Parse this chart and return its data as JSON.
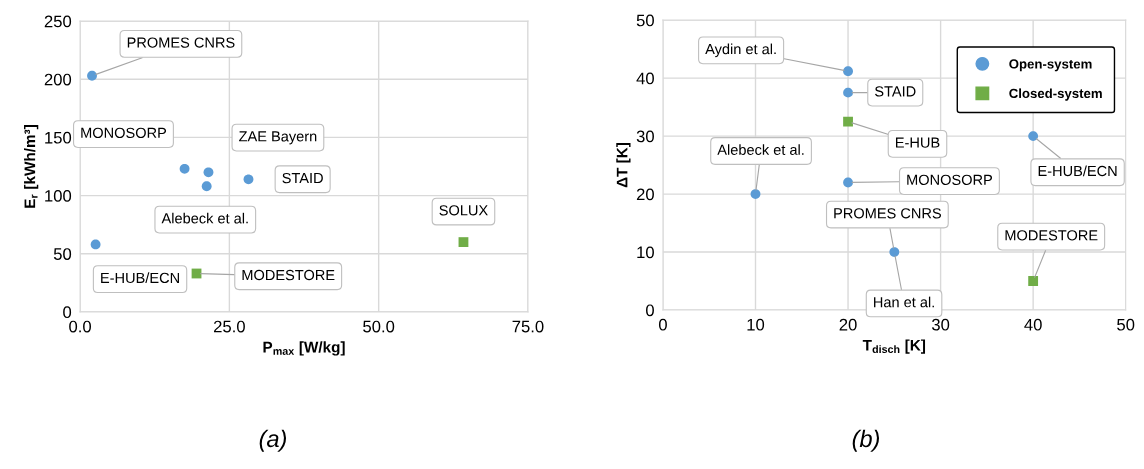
{
  "chart_data": [
    {
      "type": "scatter",
      "xlabel": "P$_{max}$ [W/kg]",
      "ylabel": "E$_{r}$ [kWh/m³]",
      "xlim": [
        0,
        75
      ],
      "xticks": [
        {
          "value": 0,
          "label": "0.0"
        },
        {
          "value": 25,
          "label": "25.0"
        },
        {
          "value": 50,
          "label": "50.0"
        },
        {
          "value": 75,
          "label": "75.0"
        }
      ],
      "ylim": [
        0,
        250
      ],
      "yticks": [
        0,
        50,
        100,
        150,
        200,
        250
      ],
      "grid": true,
      "legend": false,
      "series": [
        {
          "color": "#5b9bd5",
          "marker": "circle",
          "x": [
            2.0,
            17.5,
            21.5,
            21.2,
            28.2,
            2.6
          ],
          "values": [
            203,
            123,
            120,
            108,
            114,
            58
          ]
        },
        {
          "color": "#70ad47",
          "marker": "square",
          "x": [
            19.5,
            64.2
          ],
          "values": [
            33,
            60
          ]
        }
      ],
      "annotations": [
        {
          "text": "PROMES CNRS",
          "x": 2.0,
          "y": 203
        },
        {
          "text": "MONOSORP",
          "x": 17.5,
          "y": 123
        },
        {
          "text": "ZAE Bayern",
          "x": 21.5,
          "y": 120
        },
        {
          "text": "Alebeck et al.",
          "x": 21.2,
          "y": 108
        },
        {
          "text": "STAID",
          "x": 28.2,
          "y": 114
        },
        {
          "text": "E-HUB/ECN",
          "x": 2.6,
          "y": 58
        },
        {
          "text": "MODESTORE",
          "x": 19.5,
          "y": 33
        },
        {
          "text": "SOLUX",
          "x": 64.2,
          "y": 60
        },
        "(a)"
      ]
    },
    {
      "type": "scatter",
      "xlabel": "T$_{disch}$ [K]",
      "ylabel": "ΔT [K]",
      "xlim": [
        0,
        50
      ],
      "xticks": [
        0,
        10,
        20,
        30,
        40,
        50
      ],
      "ylim": [
        0,
        50
      ],
      "yticks": [
        0,
        10,
        20,
        30,
        40,
        50
      ],
      "grid": true,
      "legend": "top right",
      "series": [
        {
          "name": "Open-system",
          "color": "#5b9bd5",
          "marker": "circle",
          "x": [
            20,
            20,
            20,
            10,
            25,
            40
          ],
          "values": [
            41.2,
            37.5,
            22,
            20,
            10,
            30
          ]
        },
        {
          "name": "Closed-system",
          "color": "#70ad47",
          "marker": "square",
          "x": [
            20,
            40
          ],
          "values": [
            32.5,
            5
          ]
        }
      ],
      "annotations": [
        {
          "text": "Aydin et al.",
          "x": 20,
          "y": 41.2
        },
        {
          "text": "STAID",
          "x": 20,
          "y": 37.5
        },
        {
          "text": "E-HUB",
          "x": 20,
          "y": 32.5
        },
        {
          "text": "MONOSORP",
          "x": 20,
          "y": 22
        },
        {
          "text": "Alebeck et al.",
          "x": 10,
          "y": 20
        },
        {
          "text": "PROMES CNRS",
          "x": 25,
          "y": 10
        },
        {
          "text": "Han et al.",
          "x": 25,
          "y": 10
        },
        {
          "text": "E-HUB/ECN",
          "x": 40,
          "y": 30
        },
        {
          "text": "MODESTORE",
          "x": 40,
          "y": 5
        },
        "(b)"
      ]
    }
  ]
}
